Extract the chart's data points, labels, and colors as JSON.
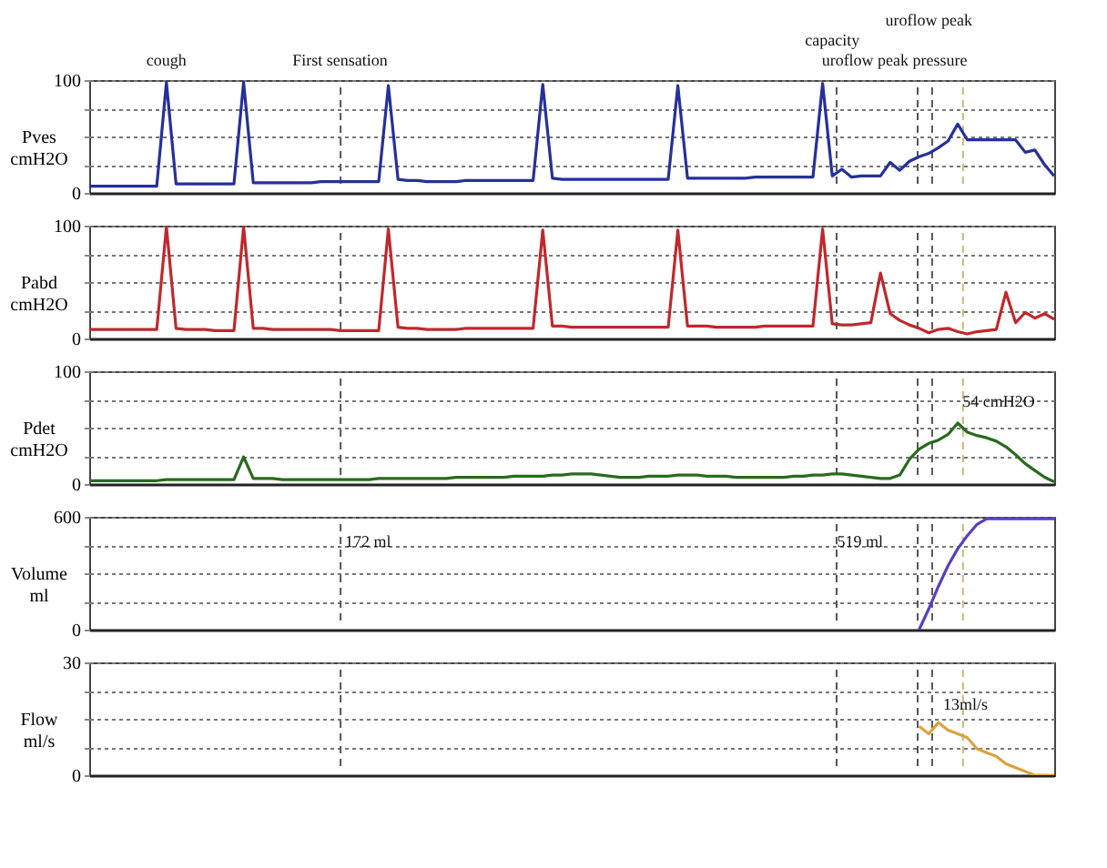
{
  "chart_data": [
    {
      "type": "line",
      "ylabel": "Pves cmH2O",
      "ylim": [
        0,
        100
      ],
      "yticks": [
        0,
        {
          "value": 25,
          "label": null
        },
        {
          "value": 50,
          "label": null
        },
        {
          "value": 75,
          "label": null
        },
        100
      ],
      "grid": "y",
      "tick_labels": "y",
      "categories": [
        null,
        null,
        null,
        null,
        null,
        null,
        null,
        null,
        null,
        null,
        null,
        null,
        null,
        null,
        null,
        null,
        null,
        null,
        null,
        null,
        null,
        null,
        null,
        null,
        null,
        null,
        null,
        null,
        null,
        null,
        null,
        null,
        null,
        null,
        null,
        null,
        null,
        null,
        null,
        null,
        null,
        null,
        null,
        null,
        null,
        null,
        null,
        null,
        null,
        null,
        null,
        null,
        null,
        null,
        null,
        null,
        null,
        null,
        null,
        null,
        null,
        null,
        null,
        null,
        null,
        null,
        null,
        null,
        null,
        null,
        null,
        null,
        null,
        null,
        null,
        null,
        null,
        null,
        null,
        null,
        null,
        null,
        null,
        null,
        null,
        null,
        null,
        null,
        null,
        null,
        null,
        null,
        null,
        null,
        null,
        null,
        null,
        null,
        null,
        null,
        null
      ],
      "series": [
        {
          "color": "#26309a",
          "values": [
            6,
            6,
            6,
            6,
            6,
            6,
            6,
            6,
            98,
            8,
            8,
            8,
            8,
            8,
            8,
            8,
            98,
            9,
            9,
            9,
            9,
            9,
            9,
            9,
            10,
            10,
            10,
            10,
            10,
            10,
            10,
            95,
            12,
            11,
            11,
            10,
            10,
            10,
            10,
            11,
            11,
            11,
            11,
            11,
            11,
            11,
            11,
            96,
            13,
            12,
            12,
            12,
            12,
            12,
            12,
            12,
            12,
            12,
            12,
            12,
            12,
            95,
            13,
            13,
            13,
            13,
            13,
            13,
            13,
            14,
            14,
            14,
            14,
            14,
            14,
            14,
            97,
            15,
            21,
            14,
            15,
            15,
            15,
            27,
            20,
            28,
            32,
            35,
            40,
            46,
            61,
            47,
            47,
            47,
            47,
            47,
            47,
            36,
            38,
            25,
            15
          ]
        }
      ],
      "annotations": [
        "cough",
        "First sensation",
        "capacity",
        "uroflow peak",
        "uroflow peak pressure"
      ]
    },
    {
      "type": "line",
      "ylabel": "Pabd cmH2O",
      "ylim": [
        0,
        100
      ],
      "yticks": [
        0,
        {
          "value": 25,
          "label": null
        },
        {
          "value": 50,
          "label": null
        },
        {
          "value": 75,
          "label": null
        },
        100
      ],
      "grid": "y",
      "tick_labels": "y",
      "categories": [
        null,
        null,
        null,
        null,
        null,
        null,
        null,
        null,
        null,
        null,
        null,
        null,
        null,
        null,
        null,
        null,
        null,
        null,
        null,
        null,
        null,
        null,
        null,
        null,
        null,
        null,
        null,
        null,
        null,
        null,
        null,
        null,
        null,
        null,
        null,
        null,
        null,
        null,
        null,
        null,
        null,
        null,
        null,
        null,
        null,
        null,
        null,
        null,
        null,
        null,
        null,
        null,
        null,
        null,
        null,
        null,
        null,
        null,
        null,
        null,
        null,
        null,
        null,
        null,
        null,
        null,
        null,
        null,
        null,
        null,
        null,
        null,
        null,
        null,
        null,
        null,
        null,
        null,
        null,
        null,
        null,
        null,
        null,
        null,
        null,
        null,
        null,
        null,
        null,
        null,
        null,
        null,
        null,
        null,
        null,
        null,
        null,
        null,
        null,
        null,
        null
      ],
      "series": [
        {
          "color": "#c0282d",
          "values": [
            8,
            8,
            8,
            8,
            8,
            8,
            8,
            8,
            99,
            9,
            8,
            8,
            8,
            7,
            7,
            7,
            99,
            9,
            9,
            8,
            8,
            8,
            8,
            8,
            8,
            8,
            7,
            7,
            7,
            7,
            7,
            97,
            10,
            9,
            9,
            8,
            8,
            8,
            8,
            9,
            9,
            9,
            9,
            9,
            9,
            9,
            9,
            96,
            11,
            11,
            10,
            10,
            10,
            10,
            10,
            10,
            10,
            10,
            10,
            10,
            10,
            96,
            11,
            11,
            11,
            10,
            10,
            10,
            10,
            10,
            11,
            11,
            11,
            11,
            11,
            11,
            97,
            13,
            12,
            12,
            13,
            14,
            58,
            22,
            16,
            12,
            9,
            5,
            8,
            9,
            6,
            4,
            6,
            7,
            8,
            41,
            14,
            23,
            18,
            22,
            17
          ]
        }
      ]
    },
    {
      "type": "line",
      "ylabel": "Pdet cmH2O",
      "ylim": [
        0,
        100
      ],
      "yticks": [
        0,
        {
          "value": 25,
          "label": null
        },
        {
          "value": 50,
          "label": null
        },
        {
          "value": 75,
          "label": null
        },
        100
      ],
      "grid": "y",
      "tick_labels": "y",
      "categories": [
        null,
        null,
        null,
        null,
        null,
        null,
        null,
        null,
        null,
        null,
        null,
        null,
        null,
        null,
        null,
        null,
        null,
        null,
        null,
        null,
        null,
        null,
        null,
        null,
        null,
        null,
        null,
        null,
        null,
        null,
        null,
        null,
        null,
        null,
        null,
        null,
        null,
        null,
        null,
        null,
        null,
        null,
        null,
        null,
        null,
        null,
        null,
        null,
        null,
        null,
        null,
        null,
        null,
        null,
        null,
        null,
        null,
        null,
        null,
        null,
        null,
        null,
        null,
        null,
        null,
        null,
        null,
        null,
        null,
        null,
        null,
        null,
        null,
        null,
        null,
        null,
        null,
        null,
        null,
        null,
        null,
        null,
        null,
        null,
        null,
        null,
        null,
        null,
        null,
        null,
        null,
        null,
        null,
        null,
        null,
        null,
        null,
        null,
        null,
        null,
        null
      ],
      "series": [
        {
          "color": "#2a6a1e",
          "values": [
            3,
            3,
            3,
            3,
            3,
            3,
            3,
            3,
            4,
            4,
            4,
            4,
            4,
            4,
            4,
            4,
            24,
            5,
            5,
            5,
            4,
            4,
            4,
            4,
            4,
            4,
            4,
            4,
            4,
            4,
            5,
            5,
            5,
            5,
            5,
            5,
            5,
            5,
            6,
            6,
            6,
            6,
            6,
            6,
            7,
            7,
            7,
            7,
            8,
            8,
            9,
            9,
            9,
            8,
            7,
            6,
            6,
            6,
            7,
            7,
            7,
            8,
            8,
            8,
            7,
            7,
            7,
            6,
            6,
            6,
            6,
            6,
            6,
            7,
            7,
            8,
            8,
            9,
            9,
            8,
            7,
            6,
            5,
            5,
            8,
            22,
            31,
            36,
            39,
            44,
            54,
            46,
            43,
            41,
            38,
            33,
            26,
            18,
            12,
            6,
            2
          ]
        }
      ],
      "annotations": [
        "54 cmH2O"
      ]
    },
    {
      "type": "line",
      "ylabel": "Volume ml",
      "ylim": [
        0,
        600
      ],
      "yticks": [
        0,
        {
          "value": 150,
          "label": null
        },
        {
          "value": 300,
          "label": null
        },
        {
          "value": 450,
          "label": null
        },
        600
      ],
      "grid": "y",
      "tick_labels": "y",
      "categories": [
        null,
        null,
        null,
        null,
        null,
        null,
        null,
        null,
        null,
        null,
        null,
        null,
        null,
        null,
        null,
        null,
        null,
        null,
        null,
        null,
        null,
        null,
        null,
        null,
        null,
        null,
        null,
        null,
        null,
        null,
        null,
        null,
        null,
        null,
        null,
        null,
        null,
        null,
        null,
        null,
        null,
        null,
        null,
        null,
        null,
        null,
        null,
        null,
        null,
        null,
        null,
        null,
        null,
        null,
        null,
        null,
        null,
        null,
        null,
        null,
        null,
        null,
        null,
        null,
        null,
        null,
        null,
        null,
        null,
        null,
        null,
        null,
        null,
        null,
        null,
        null,
        null,
        null,
        null,
        null,
        null,
        null,
        null,
        null,
        null,
        null,
        null,
        null,
        null,
        null,
        null,
        null,
        null,
        null,
        null,
        null,
        null,
        null,
        null,
        null,
        null
      ],
      "series": [
        {
          "color": "#5a3fc0",
          "values": [
            null,
            null,
            null,
            null,
            null,
            null,
            null,
            null,
            null,
            null,
            null,
            null,
            null,
            null,
            null,
            null,
            null,
            null,
            null,
            null,
            null,
            null,
            null,
            null,
            null,
            null,
            null,
            null,
            null,
            null,
            null,
            null,
            null,
            null,
            null,
            null,
            null,
            null,
            null,
            null,
            null,
            null,
            null,
            null,
            null,
            null,
            null,
            null,
            null,
            null,
            null,
            null,
            null,
            null,
            null,
            null,
            null,
            null,
            null,
            null,
            null,
            null,
            null,
            null,
            null,
            null,
            null,
            null,
            null,
            null,
            null,
            null,
            null,
            null,
            null,
            null,
            null,
            null,
            null,
            null,
            null,
            null,
            null,
            null,
            null,
            null,
            0,
            110,
            230,
            340,
            430,
            500,
            560,
            590,
            590,
            590,
            590,
            590,
            590,
            590,
            590
          ]
        }
      ],
      "annotations": [
        "172 ml",
        "519 ml"
      ]
    },
    {
      "type": "line",
      "ylabel": "Flow ml/s",
      "ylim": [
        0,
        30
      ],
      "yticks": [
        0,
        {
          "value": 7.5,
          "label": null
        },
        {
          "value": 15,
          "label": null
        },
        {
          "value": 22.5,
          "label": null
        },
        30
      ],
      "grid": "y",
      "tick_labels": "y",
      "categories": [
        null,
        null,
        null,
        null,
        null,
        null,
        null,
        null,
        null,
        null,
        null,
        null,
        null,
        null,
        null,
        null,
        null,
        null,
        null,
        null,
        null,
        null,
        null,
        null,
        null,
        null,
        null,
        null,
        null,
        null,
        null,
        null,
        null,
        null,
        null,
        null,
        null,
        null,
        null,
        null,
        null,
        null,
        null,
        null,
        null,
        null,
        null,
        null,
        null,
        null,
        null,
        null,
        null,
        null,
        null,
        null,
        null,
        null,
        null,
        null,
        null,
        null,
        null,
        null,
        null,
        null,
        null,
        null,
        null,
        null,
        null,
        null,
        null,
        null,
        null,
        null,
        null,
        null,
        null,
        null,
        null,
        null,
        null,
        null,
        null,
        null,
        null,
        null,
        null,
        null,
        null,
        null,
        null,
        null,
        null,
        null,
        null,
        null,
        null,
        null,
        null
      ],
      "series": [
        {
          "color": "#d9a441",
          "values": [
            null,
            null,
            null,
            null,
            null,
            null,
            null,
            null,
            null,
            null,
            null,
            null,
            null,
            null,
            null,
            null,
            null,
            null,
            null,
            null,
            null,
            null,
            null,
            null,
            null,
            null,
            null,
            null,
            null,
            null,
            null,
            null,
            null,
            null,
            null,
            null,
            null,
            null,
            null,
            null,
            null,
            null,
            null,
            null,
            null,
            null,
            null,
            null,
            null,
            null,
            null,
            null,
            null,
            null,
            null,
            null,
            null,
            null,
            null,
            null,
            null,
            null,
            null,
            null,
            null,
            null,
            null,
            null,
            null,
            null,
            null,
            null,
            null,
            null,
            null,
            null,
            null,
            null,
            null,
            null,
            null,
            null,
            null,
            null,
            null,
            null,
            13,
            11,
            14,
            12,
            11,
            10,
            7,
            6,
            5,
            3,
            2,
            1,
            0,
            0,
            0
          ]
        }
      ],
      "annotations": [
        "13ml/s"
      ]
    }
  ]
}
